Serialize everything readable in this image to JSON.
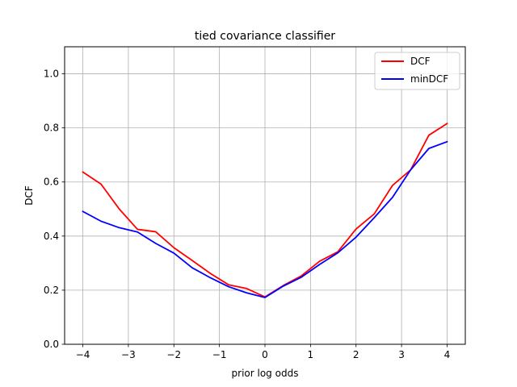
{
  "chart_data": {
    "type": "line",
    "title": "tied covariance classifier",
    "xlabel": "prior log odds",
    "ylabel": "DCF",
    "xlim": [
      -4.4,
      4.4
    ],
    "ylim": [
      0.0,
      1.1
    ],
    "grid": true,
    "legend_position": "top-right",
    "xticks": [
      -4,
      -3,
      -2,
      -1,
      0,
      1,
      2,
      3,
      4
    ],
    "xtick_labels": [
      "−4",
      "−3",
      "−2",
      "−1",
      "0",
      "1",
      "2",
      "3",
      "4"
    ],
    "yticks": [
      0.0,
      0.2,
      0.4,
      0.6,
      0.8,
      1.0
    ],
    "ytick_labels": [
      "0.0",
      "0.2",
      "0.4",
      "0.6",
      "0.8",
      "1.0"
    ],
    "x": [
      -4.0,
      -3.6,
      -3.2,
      -2.8,
      -2.4,
      -2.0,
      -1.6,
      -1.2,
      -0.8,
      -0.4,
      0.0,
      0.4,
      0.8,
      1.2,
      1.6,
      2.0,
      2.4,
      2.8,
      3.2,
      3.6,
      4.0
    ],
    "series": [
      {
        "name": "DCF",
        "color": "#ff0000",
        "values": [
          0.637,
          0.592,
          0.5,
          0.425,
          0.416,
          0.357,
          0.31,
          0.262,
          0.22,
          0.206,
          0.175,
          0.217,
          0.253,
          0.307,
          0.342,
          0.426,
          0.482,
          0.587,
          0.645,
          0.773,
          0.816
        ]
      },
      {
        "name": "minDCF",
        "color": "#0000ff",
        "values": [
          0.491,
          0.455,
          0.431,
          0.415,
          0.373,
          0.337,
          0.283,
          0.246,
          0.213,
          0.19,
          0.173,
          0.215,
          0.248,
          0.295,
          0.338,
          0.396,
          0.468,
          0.543,
          0.645,
          0.724,
          0.749
        ]
      }
    ]
  }
}
